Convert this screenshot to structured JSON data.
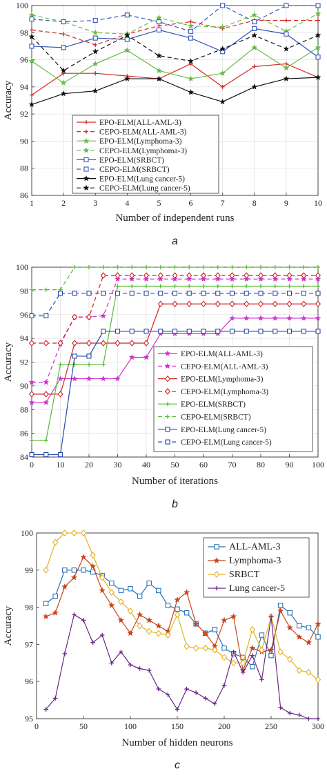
{
  "chart_data": [
    {
      "type": "line",
      "panel_label": "a",
      "xlabel": "Number of independent runs",
      "ylabel": "Accuracy",
      "x": [
        1,
        2,
        3,
        4,
        5,
        6,
        7,
        8,
        9,
        10
      ],
      "xticks": [
        1,
        2,
        3,
        4,
        5,
        6,
        7,
        8,
        9,
        10
      ],
      "yticks": [
        86,
        88,
        90,
        92,
        94,
        96,
        98,
        100
      ],
      "xlim": [
        1,
        10
      ],
      "ylim": [
        86,
        100
      ],
      "grid": true,
      "legend_position": "center-left",
      "series": [
        {
          "name": "EPO-ELM(ALL-AML-3)",
          "color": "#d62728",
          "dash": "solid",
          "marker": "plus",
          "values": [
            93.4,
            95.0,
            95.0,
            94.8,
            94.6,
            95.7,
            94.0,
            95.5,
            95.7,
            94.7
          ]
        },
        {
          "name": "CEPO-ELM(ALL-AML-3)",
          "color": "#d62728",
          "dash": "dashed",
          "marker": "plus",
          "values": [
            98.2,
            97.9,
            97.1,
            97.9,
            98.5,
            98.8,
            98.3,
            98.9,
            98.9,
            98.9
          ]
        },
        {
          "name": "EPO-ELM(Lymphoma-3)",
          "color": "#66bb44",
          "dash": "solid",
          "marker": "star",
          "values": [
            95.9,
            94.3,
            95.7,
            96.7,
            95.2,
            94.6,
            95.0,
            96.9,
            95.4,
            96.9
          ]
        },
        {
          "name": "CEPO-ELM(Lymphoma-3)",
          "color": "#66bb44",
          "dash": "dashed",
          "marker": "star",
          "values": [
            99.3,
            98.8,
            98.0,
            97.9,
            99.1,
            98.5,
            98.4,
            99.3,
            98.1,
            99.4
          ]
        },
        {
          "name": "EPO-ELM(SRBCT)",
          "color": "#3355bb",
          "dash": "solid",
          "marker": "square",
          "values": [
            97.0,
            96.9,
            97.6,
            97.5,
            98.2,
            97.6,
            96.6,
            98.3,
            97.9,
            96.2
          ]
        },
        {
          "name": "CEPO-ELM(SRBCT)",
          "color": "#3355bb",
          "dash": "dashed",
          "marker": "square",
          "values": [
            99.0,
            98.8,
            98.9,
            99.3,
            98.8,
            98.1,
            100,
            98.8,
            100,
            100
          ]
        },
        {
          "name": "EPO-ELM(Lung cancer-5)",
          "color": "#111111",
          "dash": "solid",
          "marker": "star",
          "values": [
            92.7,
            93.5,
            93.7,
            94.6,
            94.6,
            93.6,
            92.9,
            94.0,
            94.6,
            94.7
          ]
        },
        {
          "name": "CEPO-ELM(Lung cancer-5)",
          "color": "#111111",
          "dash": "dashed",
          "marker": "star",
          "values": [
            97.7,
            95.2,
            96.6,
            97.8,
            96.3,
            95.9,
            96.8,
            97.8,
            96.8,
            97.8
          ]
        }
      ]
    },
    {
      "type": "line",
      "panel_label": "b",
      "xlabel": "Number of iterations",
      "ylabel": "Accuracy",
      "x": [
        0,
        5,
        10,
        15,
        20,
        25,
        30,
        35,
        40,
        45,
        50,
        55,
        60,
        65,
        70,
        75,
        80,
        85,
        90,
        95,
        100
      ],
      "xticks": [
        0,
        10,
        20,
        30,
        40,
        50,
        60,
        70,
        80,
        90,
        100
      ],
      "yticks": [
        84,
        86,
        88,
        90,
        92,
        94,
        96,
        98,
        100
      ],
      "xlim": [
        0,
        100
      ],
      "ylim": [
        84,
        100
      ],
      "grid": true,
      "legend_position": "bottom-right",
      "series": [
        {
          "name": "EPO-ELM(ALL-AML-3)",
          "color": "#cc33cc",
          "dash": "solid",
          "marker": "star",
          "values": [
            88.6,
            88.6,
            90.6,
            90.6,
            90.6,
            90.6,
            90.6,
            92.4,
            92.4,
            94.4,
            94.4,
            94.4,
            94.4,
            94.4,
            95.7,
            95.7,
            95.7,
            95.7,
            95.7,
            95.7,
            95.7
          ]
        },
        {
          "name": "CEPO-ELM(ALL-AML-3)",
          "color": "#cc33cc",
          "dash": "dashed",
          "marker": "star",
          "values": [
            90.3,
            90.3,
            93.5,
            95.8,
            95.8,
            95.9,
            99.0,
            99.0,
            99.0,
            99.0,
            99.0,
            99.0,
            99.0,
            99.0,
            99.0,
            99.0,
            99.0,
            99.0,
            99.0,
            99.0,
            99.0
          ]
        },
        {
          "name": "EPO-ELM(Lymphoma-3)",
          "color": "#cc2222",
          "dash": "solid",
          "marker": "diamond",
          "values": [
            89.3,
            89.3,
            89.3,
            93.6,
            93.6,
            93.6,
            93.6,
            93.6,
            93.6,
            96.9,
            96.9,
            96.9,
            96.9,
            96.9,
            96.9,
            96.9,
            96.9,
            96.9,
            96.9,
            96.9,
            96.9
          ]
        },
        {
          "name": "CEPO-ELM(Lymphoma-3)",
          "color": "#cc2222",
          "dash": "dashed",
          "marker": "diamond",
          "values": [
            93.6,
            93.6,
            93.6,
            95.8,
            95.8,
            99.3,
            99.3,
            99.3,
            99.3,
            99.3,
            99.3,
            99.3,
            99.3,
            99.3,
            99.3,
            99.3,
            99.3,
            99.3,
            99.3,
            99.3,
            99.3
          ]
        },
        {
          "name": "EPO-ELM(SRBCT)",
          "color": "#55bb33",
          "dash": "solid",
          "marker": "plus",
          "values": [
            85.4,
            85.4,
            91.8,
            91.8,
            91.8,
            91.8,
            98.4,
            98.4,
            98.4,
            98.4,
            98.4,
            98.4,
            98.4,
            98.4,
            98.4,
            98.4,
            98.4,
            98.4,
            98.4,
            98.4,
            98.4
          ]
        },
        {
          "name": "CEPO-ELM(SRBCT)",
          "color": "#55bb33",
          "dash": "dashed",
          "marker": "plus",
          "values": [
            98.1,
            98.1,
            98.1,
            100,
            100,
            100,
            100,
            100,
            100,
            100,
            100,
            100,
            100,
            100,
            100,
            100,
            100,
            100,
            100,
            100,
            100
          ]
        },
        {
          "name": "EPO-ELM(Lung cancer-5)",
          "color": "#2244aa",
          "dash": "solid",
          "marker": "square",
          "values": [
            84.2,
            84.2,
            84.2,
            92.5,
            92.5,
            94.6,
            94.6,
            94.6,
            94.6,
            94.6,
            94.6,
            94.6,
            94.6,
            94.6,
            94.6,
            94.6,
            94.6,
            94.6,
            94.6,
            94.6,
            94.6
          ]
        },
        {
          "name": "CEPO-ELM(Lung cancer-5)",
          "color": "#2244aa",
          "dash": "dashed",
          "marker": "square",
          "values": [
            95.9,
            95.9,
            97.8,
            97.8,
            97.8,
            97.8,
            97.8,
            97.8,
            97.8,
            97.8,
            97.8,
            97.8,
            97.8,
            97.8,
            97.8,
            97.8,
            97.8,
            97.8,
            97.8,
            97.8,
            97.8
          ]
        }
      ]
    },
    {
      "type": "line",
      "panel_label": "c",
      "xlabel": "Number of hidden neurons",
      "ylabel": "Accuracy",
      "x": [
        10,
        20,
        30,
        40,
        50,
        60,
        70,
        80,
        90,
        100,
        110,
        120,
        130,
        140,
        150,
        160,
        170,
        180,
        190,
        200,
        210,
        220,
        230,
        240,
        250,
        260,
        270,
        280,
        290,
        300
      ],
      "xticks": [
        0,
        50,
        100,
        150,
        200,
        250,
        300
      ],
      "yticks": [
        95,
        96,
        97,
        98,
        99,
        100
      ],
      "xlim": [
        0,
        300
      ],
      "ylim": [
        95,
        100
      ],
      "grid": false,
      "legend_position": "top-right",
      "series": [
        {
          "name": "ALL-AML-3",
          "color": "#2a72b5",
          "marker": "square",
          "values": [
            98.1,
            98.3,
            99.0,
            99.0,
            99.0,
            98.95,
            98.85,
            98.65,
            98.45,
            98.5,
            98.3,
            98.65,
            98.45,
            98.05,
            97.95,
            97.85,
            97.55,
            97.3,
            97.4,
            96.9,
            96.75,
            96.65,
            96.4,
            97.25,
            96.7,
            98.05,
            97.85,
            97.5,
            97.45,
            97.2
          ]
        },
        {
          "name": "Lymphoma-3",
          "color": "#c6451a",
          "marker": "star",
          "values": [
            97.75,
            97.85,
            98.55,
            98.8,
            99.35,
            99.1,
            98.45,
            98.05,
            97.65,
            97.3,
            97.8,
            97.65,
            97.5,
            97.35,
            98.2,
            98.4,
            97.55,
            97.3,
            96.95,
            97.65,
            97.75,
            96.3,
            96.9,
            96.8,
            96.85,
            97.9,
            97.45,
            97.2,
            97.05,
            97.55
          ]
        },
        {
          "name": "SRBCT",
          "color": "#e3b21e",
          "marker": "diamond",
          "values": [
            99.0,
            99.75,
            100,
            100,
            100,
            99.4,
            98.8,
            98.4,
            98.15,
            97.9,
            97.5,
            97.35,
            97.3,
            97.25,
            97.8,
            96.95,
            96.9,
            96.9,
            96.85,
            96.65,
            96.5,
            96.5,
            97.4,
            96.85,
            97.75,
            96.8,
            96.6,
            96.3,
            96.25,
            96.05
          ]
        },
        {
          "name": "Lung cancer-5",
          "color": "#6a2785",
          "marker": "plus",
          "values": [
            95.25,
            95.55,
            96.75,
            97.8,
            97.65,
            97.05,
            97.25,
            96.5,
            96.8,
            96.45,
            96.35,
            96.3,
            95.8,
            95.65,
            95.25,
            95.8,
            95.7,
            95.55,
            95.4,
            95.9,
            96.8,
            96.25,
            96.7,
            96.05,
            97.75,
            95.3,
            95.15,
            95.1,
            95.0,
            95.0
          ]
        }
      ]
    }
  ]
}
